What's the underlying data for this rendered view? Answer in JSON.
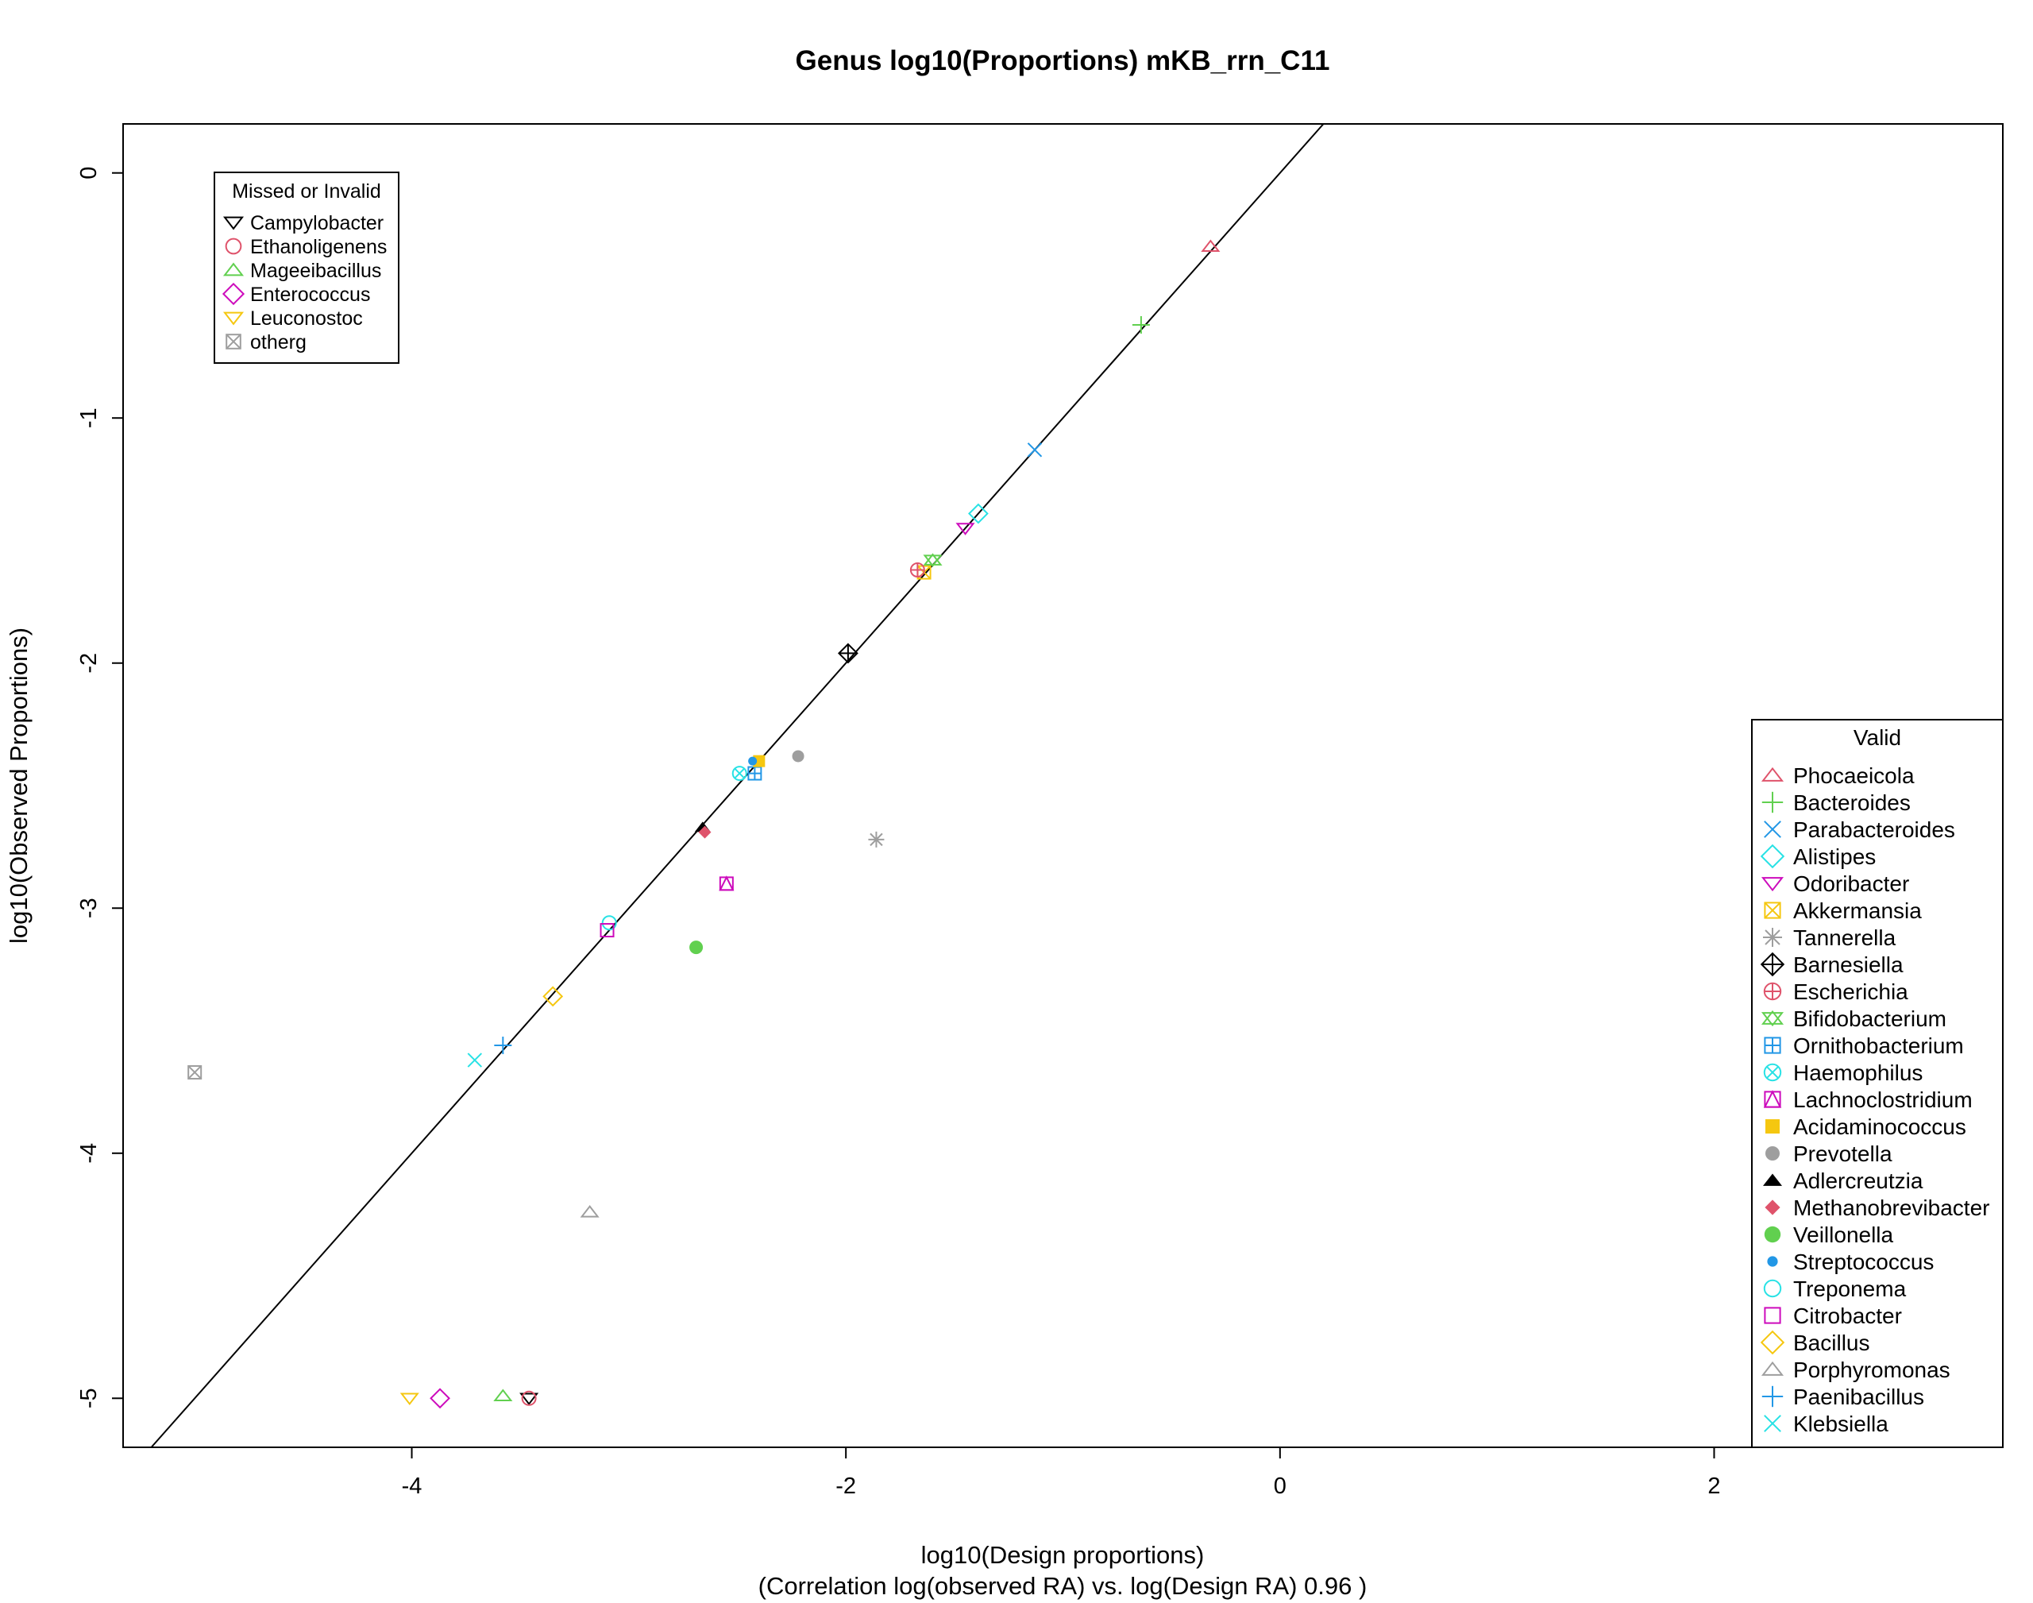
{
  "chart_data": {
    "type": "scatter",
    "title": "Genus log10(Proportions) mKB_rrn_C11",
    "xlabel": "log10(Design proportions)",
    "xlabel2": "(Correlation log(observed RA) vs. log(Design RA)  0.96 )",
    "ylabel": "log10(Observed Proportions)",
    "xlim": [
      -5.33,
      3.33
    ],
    "ylim": [
      -5.2,
      0.2
    ],
    "x_ticks": [
      -4,
      -2,
      0,
      2
    ],
    "x_tick_labels": [
      "-4",
      "-2",
      "0",
      "2"
    ],
    "y_ticks": [
      0,
      -1,
      -2,
      -3,
      -4,
      -5
    ],
    "y_tick_labels": [
      "0",
      "-1",
      "-2",
      "-3",
      "-4",
      "-5"
    ],
    "reference_line": {
      "slope": 1,
      "intercept": 0
    },
    "grid": false,
    "legends": [
      {
        "title": "Missed or Invalid",
        "placement": "top-left",
        "entries": [
          {
            "name": "Campylobacter",
            "symbol": "triangle-down",
            "color": "#000000"
          },
          {
            "name": "Ethanoligenens",
            "symbol": "circle",
            "color": "#DF536B"
          },
          {
            "name": "Mageeibacillus",
            "symbol": "triangle",
            "color": "#61D04F"
          },
          {
            "name": "Enterococcus",
            "symbol": "diamond",
            "color": "#CD0BBC"
          },
          {
            "name": "Leuconostoc",
            "symbol": "triangle-down",
            "color": "#F5C710"
          },
          {
            "name": "otherg",
            "symbol": "square-x",
            "color": "#9E9E9E"
          }
        ]
      },
      {
        "title": "Valid",
        "placement": "right",
        "entries": [
          {
            "name": "Phocaeicola",
            "symbol": "triangle",
            "color": "#DF536B"
          },
          {
            "name": "Bacteroides",
            "symbol": "plus",
            "color": "#61D04F"
          },
          {
            "name": "Parabacteroides",
            "symbol": "x",
            "color": "#2297E6"
          },
          {
            "name": "Alistipes",
            "symbol": "diamond",
            "color": "#28E2E5"
          },
          {
            "name": "Odoribacter",
            "symbol": "triangle-down",
            "color": "#CD0BBC"
          },
          {
            "name": "Akkermansia",
            "symbol": "square-x",
            "color": "#F5C710"
          },
          {
            "name": "Tannerella",
            "symbol": "asterisk",
            "color": "#9E9E9E"
          },
          {
            "name": "Barnesiella",
            "symbol": "diamond-plus",
            "color": "#000000"
          },
          {
            "name": "Escherichia",
            "symbol": "circle-plus",
            "color": "#DF536B"
          },
          {
            "name": "Bifidobacterium",
            "symbol": "star-of-david",
            "color": "#61D04F"
          },
          {
            "name": "Ornithobacterium",
            "symbol": "square-plus",
            "color": "#2297E6"
          },
          {
            "name": "Haemophilus",
            "symbol": "circle-x",
            "color": "#28E2E5"
          },
          {
            "name": "Lachnoclostridium",
            "symbol": "square-triangle",
            "color": "#CD0BBC"
          },
          {
            "name": "Acidaminococcus",
            "symbol": "filled-square",
            "color": "#F5C710"
          },
          {
            "name": "Prevotella",
            "symbol": "filled-circle",
            "color": "#9E9E9E"
          },
          {
            "name": "Adlercreutzia",
            "symbol": "filled-triangle",
            "color": "#000000"
          },
          {
            "name": "Methanobrevibacter",
            "symbol": "filled-diamond",
            "color": "#DF536B"
          },
          {
            "name": "Veillonella",
            "symbol": "filled-circle-large",
            "color": "#61D04F"
          },
          {
            "name": "Streptococcus",
            "symbol": "filled-circle-small",
            "color": "#2297E6"
          },
          {
            "name": "Treponema",
            "symbol": "circle",
            "color": "#28E2E5"
          },
          {
            "name": "Citrobacter",
            "symbol": "square",
            "color": "#CD0BBC"
          },
          {
            "name": "Bacillus",
            "symbol": "diamond",
            "color": "#F5C710"
          },
          {
            "name": "Porphyromonas",
            "symbol": "triangle",
            "color": "#9E9E9E"
          },
          {
            "name": "Paenibacillus",
            "symbol": "plus",
            "color": "#2297E6"
          },
          {
            "name": "Klebsiella",
            "symbol": "x",
            "color": "#28E2E5"
          }
        ]
      }
    ],
    "series": [
      {
        "name": "Phocaeicola",
        "symbol": "triangle",
        "color": "#DF536B",
        "points": [
          [
            -0.32,
            -0.3
          ]
        ]
      },
      {
        "name": "Bacteroides",
        "symbol": "plus",
        "color": "#61D04F",
        "points": [
          [
            -0.64,
            -0.62
          ]
        ]
      },
      {
        "name": "Parabacteroides",
        "symbol": "x",
        "color": "#2297E6",
        "points": [
          [
            -1.13,
            -1.13
          ]
        ]
      },
      {
        "name": "Alistipes",
        "symbol": "diamond",
        "color": "#28E2E5",
        "points": [
          [
            -1.39,
            -1.39
          ]
        ]
      },
      {
        "name": "Odoribacter",
        "symbol": "triangle-down",
        "color": "#CD0BBC",
        "points": [
          [
            -1.45,
            -1.45
          ]
        ]
      },
      {
        "name": "Akkermansia",
        "symbol": "square-x",
        "color": "#F5C710",
        "points": [
          [
            -1.64,
            -1.63
          ]
        ]
      },
      {
        "name": "Tannerella",
        "symbol": "asterisk",
        "color": "#9E9E9E",
        "points": [
          [
            -1.86,
            -2.72
          ]
        ]
      },
      {
        "name": "Barnesiella",
        "symbol": "diamond-plus",
        "color": "#000000",
        "points": [
          [
            -1.99,
            -1.96
          ]
        ]
      },
      {
        "name": "Escherichia",
        "symbol": "circle-plus",
        "color": "#DF536B",
        "points": [
          [
            -1.67,
            -1.62
          ]
        ]
      },
      {
        "name": "Bifidobacterium",
        "symbol": "star-of-david",
        "color": "#61D04F",
        "points": [
          [
            -1.6,
            -1.58
          ]
        ]
      },
      {
        "name": "Ornithobacterium",
        "symbol": "square-plus",
        "color": "#2297E6",
        "points": [
          [
            -2.42,
            -2.45
          ]
        ]
      },
      {
        "name": "Haemophilus",
        "symbol": "circle-x",
        "color": "#28E2E5",
        "points": [
          [
            -2.49,
            -2.45
          ]
        ]
      },
      {
        "name": "Lachnoclostridium",
        "symbol": "square-triangle",
        "color": "#CD0BBC",
        "points": [
          [
            -2.55,
            -2.9
          ]
        ]
      },
      {
        "name": "Acidaminococcus",
        "symbol": "filled-square",
        "color": "#F5C710",
        "points": [
          [
            -2.4,
            -2.4
          ]
        ]
      },
      {
        "name": "Prevotella",
        "symbol": "filled-circle",
        "color": "#9E9E9E",
        "points": [
          [
            -2.22,
            -2.38
          ]
        ]
      },
      {
        "name": "Adlercreutzia",
        "symbol": "filled-triangle",
        "color": "#000000",
        "points": [
          [
            -2.66,
            -2.67
          ]
        ]
      },
      {
        "name": "Methanobrevibacter",
        "symbol": "filled-diamond",
        "color": "#DF536B",
        "points": [
          [
            -2.65,
            -2.69
          ]
        ]
      },
      {
        "name": "Veillonella",
        "symbol": "filled-circle-large",
        "color": "#61D04F",
        "points": [
          [
            -2.69,
            -3.16
          ]
        ]
      },
      {
        "name": "Streptococcus",
        "symbol": "filled-circle-small",
        "color": "#2297E6",
        "points": [
          [
            -2.43,
            -2.4
          ]
        ]
      },
      {
        "name": "Treponema",
        "symbol": "circle",
        "color": "#28E2E5",
        "points": [
          [
            -3.09,
            -3.06
          ]
        ]
      },
      {
        "name": "Citrobacter",
        "symbol": "square",
        "color": "#CD0BBC",
        "points": [
          [
            -3.1,
            -3.09
          ]
        ]
      },
      {
        "name": "Bacillus",
        "symbol": "diamond",
        "color": "#F5C710",
        "points": [
          [
            -3.35,
            -3.36
          ]
        ]
      },
      {
        "name": "Porphyromonas",
        "symbol": "triangle",
        "color": "#9E9E9E",
        "points": [
          [
            -3.18,
            -4.24
          ]
        ]
      },
      {
        "name": "Paenibacillus",
        "symbol": "plus",
        "color": "#2297E6",
        "points": [
          [
            -3.58,
            -3.56
          ]
        ]
      },
      {
        "name": "Klebsiella",
        "symbol": "x",
        "color": "#28E2E5",
        "points": [
          [
            -3.71,
            -3.62
          ]
        ]
      },
      {
        "name": "Campylobacter",
        "symbol": "triangle-down",
        "color": "#000000",
        "points": [
          [
            -3.46,
            -5.0
          ]
        ]
      },
      {
        "name": "Ethanoligenens",
        "symbol": "circle",
        "color": "#DF536B",
        "points": [
          [
            -3.46,
            -5.0
          ]
        ]
      },
      {
        "name": "Mageeibacillus",
        "symbol": "triangle",
        "color": "#61D04F",
        "points": [
          [
            -3.58,
            -4.99
          ]
        ]
      },
      {
        "name": "Enterococcus",
        "symbol": "diamond",
        "color": "#CD0BBC",
        "points": [
          [
            -3.87,
            -5.0
          ]
        ]
      },
      {
        "name": "Leuconostoc",
        "symbol": "triangle-down",
        "color": "#F5C710",
        "points": [
          [
            -4.01,
            -5.0
          ]
        ]
      },
      {
        "name": "otherg",
        "symbol": "square-x",
        "color": "#9E9E9E",
        "points": [
          [
            -5.0,
            -3.67
          ]
        ]
      }
    ]
  }
}
